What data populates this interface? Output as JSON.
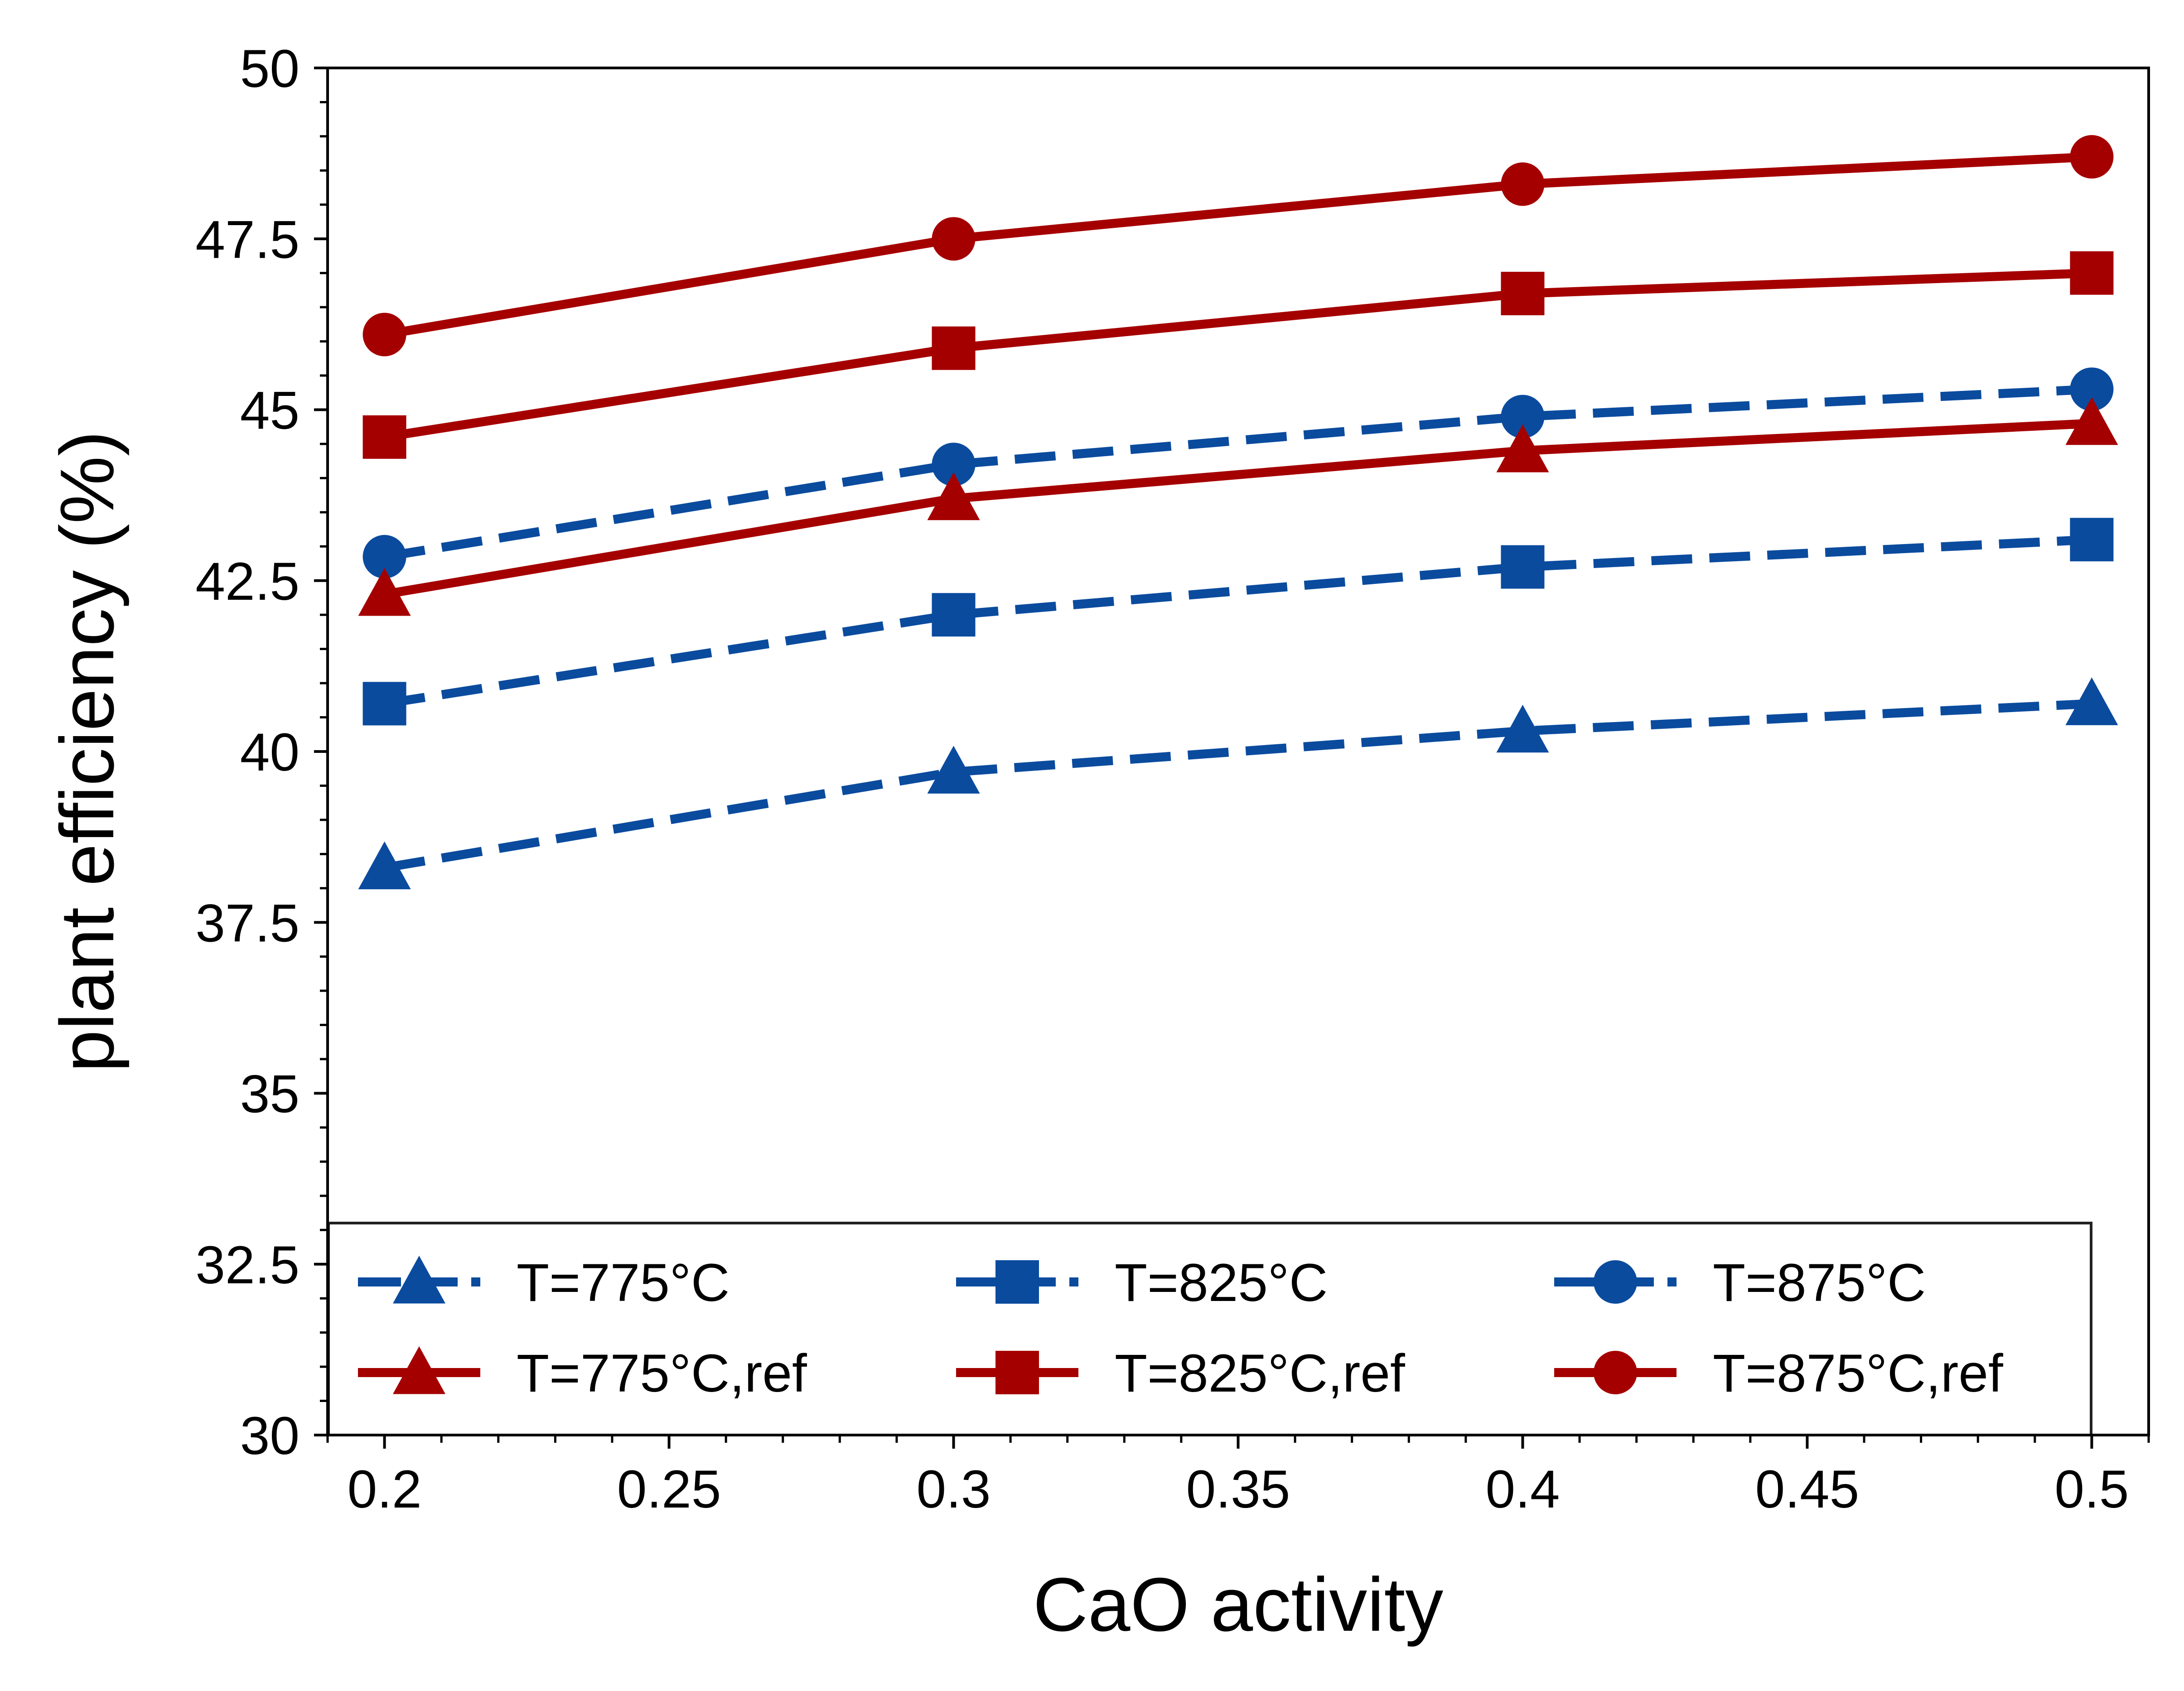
{
  "chart_data": {
    "type": "line",
    "title": "",
    "xlabel": "CaO activity",
    "ylabel": "plant efficiency (%)",
    "xlim": [
      0.19,
      0.51
    ],
    "ylim": [
      30,
      50
    ],
    "x_ticks": [
      "0.2",
      "0.25",
      "0.3",
      "0.35",
      "0.4",
      "0.45",
      "0.5"
    ],
    "y_ticks": [
      "30",
      "32.5",
      "35",
      "37.5",
      "40",
      "42.5",
      "45",
      "47.5",
      "50"
    ],
    "x": [
      0.2,
      0.3,
      0.4,
      0.5
    ],
    "grid": false,
    "legend_position": "bottom",
    "series": [
      {
        "name": "T=775°C",
        "color": "#0a4b9e",
        "line": "dashed",
        "marker": "triangle",
        "values": [
          38.3,
          39.7,
          40.3,
          40.7
        ]
      },
      {
        "name": "T=825°C",
        "color": "#0a4b9e",
        "line": "dashed",
        "marker": "square",
        "values": [
          40.7,
          42.0,
          42.7,
          43.1
        ]
      },
      {
        "name": "T=875°C",
        "color": "#0a4b9e",
        "line": "dashed",
        "marker": "circle",
        "values": [
          42.85,
          44.2,
          44.9,
          45.3
        ]
      },
      {
        "name": "T=775°C,ref",
        "color": "#a50000",
        "line": "solid",
        "marker": "triangle",
        "values": [
          42.3,
          43.7,
          44.4,
          44.8
        ]
      },
      {
        "name": "T=825°C,ref",
        "color": "#a50000",
        "line": "solid",
        "marker": "square",
        "values": [
          44.6,
          45.9,
          46.7,
          47.0
        ]
      },
      {
        "name": "T=875°C,ref",
        "color": "#a50000",
        "line": "solid",
        "marker": "circle",
        "values": [
          46.1,
          47.5,
          48.3,
          48.7
        ]
      }
    ]
  }
}
